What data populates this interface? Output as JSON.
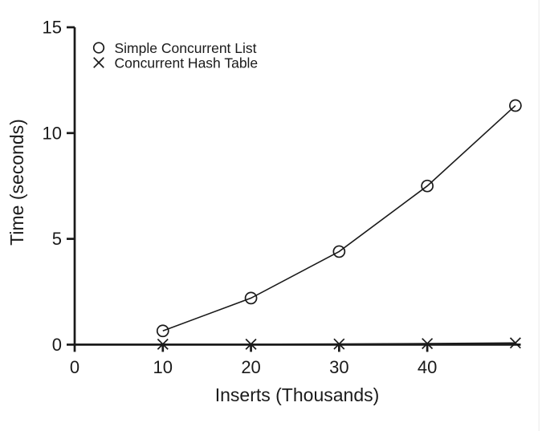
{
  "figure": {
    "background": "#ffffff",
    "line_color": "#1a1a1a"
  },
  "chart_data": {
    "type": "line",
    "title": "",
    "xlabel": "Inserts (Thousands)",
    "ylabel": "Time (seconds)",
    "xlim": [
      0,
      50.6
    ],
    "ylim": [
      0,
      15
    ],
    "x_ticks": [
      0,
      10,
      20,
      30,
      40
    ],
    "y_ticks": [
      0,
      5,
      10,
      15
    ],
    "grid": false,
    "legend_position": "top-left-inside",
    "series": [
      {
        "name": "Simple Concurrent List",
        "marker": "circle",
        "x": [
          10,
          20,
          30,
          40,
          50
        ],
        "values": [
          0.65,
          2.2,
          4.4,
          7.5,
          11.3
        ]
      },
      {
        "name": "Concurrent Hash Table",
        "marker": "x",
        "x": [
          10,
          20,
          30,
          40,
          50
        ],
        "values": [
          0.02,
          0.02,
          0.03,
          0.05,
          0.08
        ]
      }
    ]
  }
}
